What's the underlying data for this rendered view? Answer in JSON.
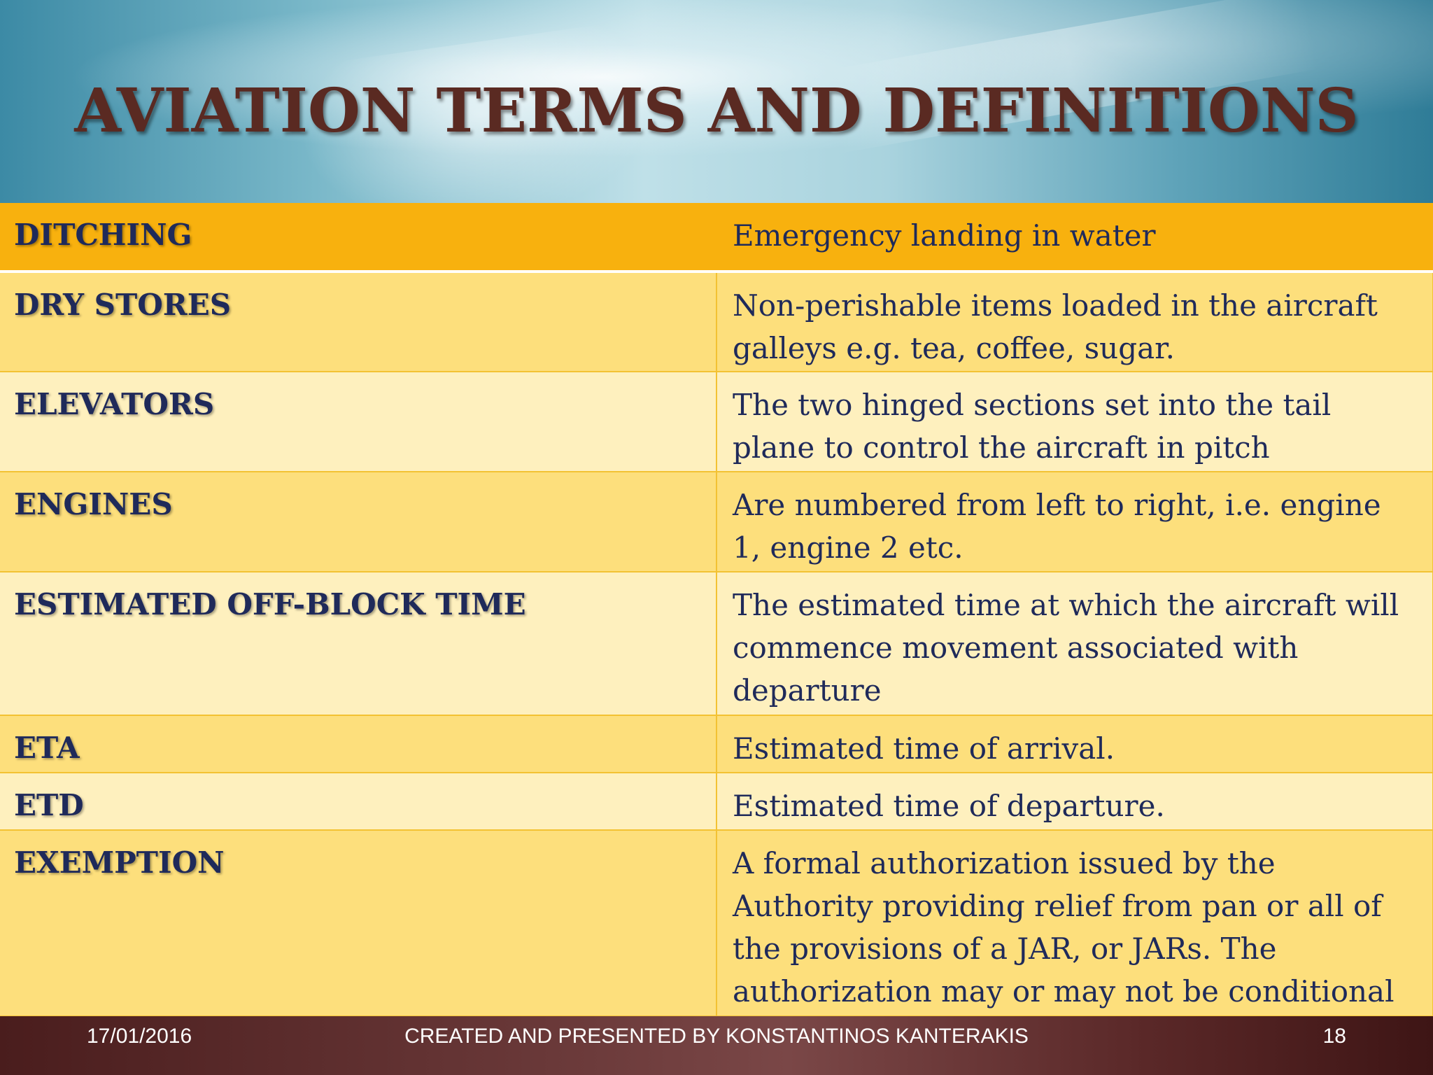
{
  "slide": {
    "title": "AVIATION TERMS AND DEFINITIONS",
    "rows": [
      {
        "term": "DITCHING",
        "definition": "Emergency landing in water"
      },
      {
        "term": "DRY STORES",
        "definition": "Non-perishable items loaded in the aircraft galleys e.g. tea, coffee, sugar."
      },
      {
        "term": "ELEVATORS",
        "definition": "The two hinged sections set into the tail plane to control the aircraft in pitch"
      },
      {
        "term": "ENGINES",
        "definition": "Are numbered from left to right, i.e. engine 1, engine 2 etc."
      },
      {
        "term": "ESTIMATED OFF-BLOCK  TIME",
        "definition": "The estimated time at which the aircraft will commence movement associated with departure"
      },
      {
        "term": "ETA",
        "definition": "Estimated time of arrival."
      },
      {
        "term": "ETD",
        "definition": "Estimated time of departure."
      },
      {
        "term": "EXEMPTION",
        "definition": "A formal authorization issued by the Authority providing relief from pan or all of the provisions of a JAR, or JARs. The authorization may or may not be conditional"
      }
    ]
  },
  "footer": {
    "date": "17/01/2016",
    "author": "CREATED AND PRESENTED BY KONSTANTINOS KANTERAKIS",
    "page": "18"
  },
  "colors": {
    "title": "#5a2a22",
    "header_row": "#f8b10e",
    "row_dark": "#fddf7c",
    "row_light": "#fef0be",
    "text": "#1f2a5a",
    "footer_bg": "#5a2828"
  }
}
